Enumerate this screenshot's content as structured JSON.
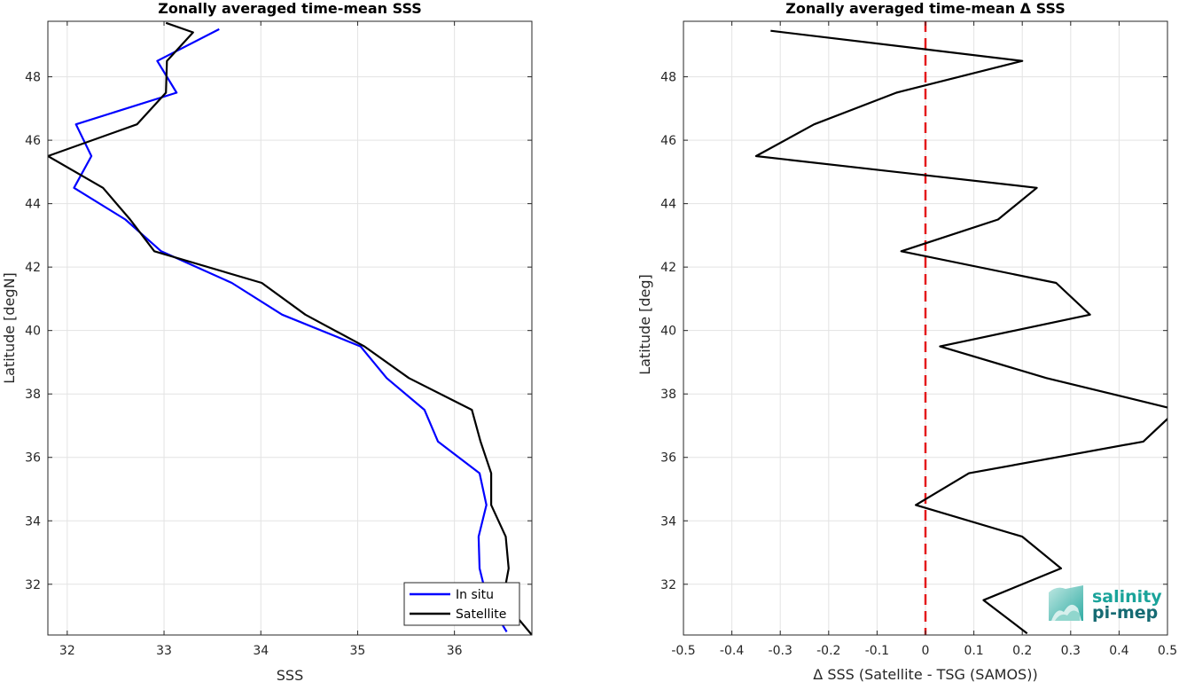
{
  "chart_data": [
    {
      "type": "line",
      "title": "Zonally averaged time-mean SSS",
      "xlabel": "SSS",
      "ylabel": "Latitude [degN]",
      "xlim": [
        31.8,
        36.8
      ],
      "ylim": [
        30.4,
        49.75
      ],
      "xticks": [
        32,
        33,
        34,
        35,
        36
      ],
      "yticks": [
        32,
        34,
        36,
        38,
        40,
        42,
        44,
        46,
        48
      ],
      "grid": true,
      "legend_position": "bottom-right",
      "series": [
        {
          "name": "In situ",
          "color": "#0000ff",
          "x": [
            33.57,
            32.93,
            33.13,
            32.09,
            32.25,
            32.07,
            32.6,
            32.97,
            33.7,
            34.22,
            35.03,
            35.3,
            35.69,
            35.83,
            36.26,
            36.33,
            36.25,
            36.26,
            36.34,
            36.54
          ],
          "y": [
            49.5,
            48.5,
            47.5,
            46.5,
            45.5,
            44.5,
            43.5,
            42.5,
            41.5,
            40.5,
            39.5,
            38.5,
            37.5,
            36.5,
            35.5,
            34.5,
            33.5,
            32.5,
            31.5,
            30.5
          ]
        },
        {
          "name": "Satellite",
          "color": "#000000",
          "x": [
            33.02,
            33.3,
            33.03,
            33.02,
            32.72,
            31.8,
            32.37,
            32.65,
            32.9,
            34.01,
            34.46,
            35.07,
            35.53,
            36.18,
            36.27,
            36.38,
            36.38,
            36.53,
            36.56,
            36.5,
            36.8
          ],
          "y": [
            49.7,
            49.4,
            48.5,
            47.5,
            46.5,
            45.5,
            44.5,
            43.5,
            42.5,
            41.5,
            40.5,
            39.5,
            38.5,
            37.5,
            36.5,
            35.5,
            34.5,
            33.5,
            32.5,
            31.5,
            30.4
          ]
        }
      ]
    },
    {
      "type": "line",
      "title": "Zonally averaged time-mean Δ SSS",
      "xlabel": "Δ SSS (Satellite - TSG (SAMOS))",
      "ylabel": "Latitude [deg]",
      "xlim": [
        -0.5,
        0.5
      ],
      "ylim": [
        30.4,
        49.75
      ],
      "xticks": [
        -0.5,
        -0.4,
        -0.3,
        -0.2,
        -0.1,
        0,
        0.1,
        0.2,
        0.3,
        0.4,
        0.5
      ],
      "yticks": [
        32,
        34,
        36,
        38,
        40,
        42,
        44,
        46,
        48
      ],
      "grid": true,
      "reference_line": {
        "x": 0,
        "color": "#e41a1c",
        "style": "dashed"
      },
      "series": [
        {
          "color": "#000000",
          "x": [
            -0.32,
            0.2,
            -0.06,
            -0.23,
            -0.35,
            0.23,
            0.15,
            -0.05,
            0.27,
            0.34,
            0.03,
            0.25,
            0.52,
            0.45,
            0.09,
            -0.02,
            0.2,
            0.28,
            0.12,
            0.21
          ],
          "y": [
            49.45,
            48.5,
            47.5,
            46.5,
            45.5,
            44.5,
            43.5,
            42.5,
            41.5,
            40.5,
            39.5,
            38.5,
            37.5,
            36.5,
            35.5,
            34.5,
            33.5,
            32.5,
            31.5,
            30.45
          ]
        }
      ]
    }
  ],
  "logo": {
    "line1": "salinity",
    "line2": "pi-mep",
    "color1": "#1aa39a",
    "color2": "#166b73"
  }
}
